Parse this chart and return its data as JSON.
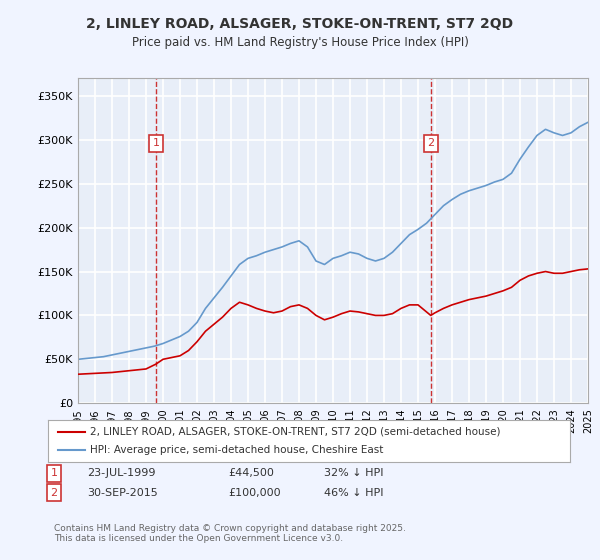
{
  "title": "2, LINLEY ROAD, ALSAGER, STOKE-ON-TRENT, ST7 2QD",
  "subtitle": "Price paid vs. HM Land Registry's House Price Index (HPI)",
  "background_color": "#f0f4ff",
  "plot_bg_color": "#e8eef8",
  "grid_color": "#ffffff",
  "legend_label_red": "2, LINLEY ROAD, ALSAGER, STOKE-ON-TRENT, ST7 2QD (semi-detached house)",
  "legend_label_blue": "HPI: Average price, semi-detached house, Cheshire East",
  "footer": "Contains HM Land Registry data © Crown copyright and database right 2025.\nThis data is licensed under the Open Government Licence v3.0.",
  "annotation1": {
    "label": "1",
    "date": "23-JUL-1999",
    "price": 44500,
    "note": "32% ↓ HPI"
  },
  "annotation2": {
    "label": "2",
    "date": "30-SEP-2015",
    "price": 100000,
    "note": "46% ↓ HPI"
  },
  "red_line_color": "#cc0000",
  "blue_line_color": "#6699cc",
  "annotation_box_color": "#cc3333",
  "dashed_line_color": "#cc3333",
  "ylim": [
    0,
    370000
  ],
  "yticks": [
    0,
    50000,
    100000,
    150000,
    200000,
    250000,
    300000,
    350000
  ],
  "ytick_labels": [
    "£0",
    "£50K",
    "£100K",
    "£150K",
    "£200K",
    "£250K",
    "£300K",
    "£350K"
  ],
  "x_start_year": 1995,
  "x_end_year": 2025,
  "red_data": {
    "years": [
      1995.0,
      1995.5,
      1996.0,
      1996.5,
      1997.0,
      1997.5,
      1998.0,
      1998.5,
      1999.0,
      1999.58,
      2000.0,
      2000.5,
      2001.0,
      2001.5,
      2002.0,
      2002.5,
      2003.0,
      2003.5,
      2004.0,
      2004.5,
      2005.0,
      2005.5,
      2006.0,
      2006.5,
      2007.0,
      2007.5,
      2008.0,
      2008.5,
      2009.0,
      2009.5,
      2010.0,
      2010.5,
      2011.0,
      2011.5,
      2012.0,
      2012.5,
      2013.0,
      2013.5,
      2014.0,
      2014.5,
      2015.0,
      2015.75,
      2016.0,
      2016.5,
      2017.0,
      2017.5,
      2018.0,
      2018.5,
      2019.0,
      2019.5,
      2020.0,
      2020.5,
      2021.0,
      2021.5,
      2022.0,
      2022.5,
      2023.0,
      2023.5,
      2024.0,
      2024.5,
      2025.0
    ],
    "values": [
      33000,
      33500,
      34000,
      34500,
      35000,
      36000,
      37000,
      38000,
      39000,
      44500,
      50000,
      52000,
      54000,
      60000,
      70000,
      82000,
      90000,
      98000,
      108000,
      115000,
      112000,
      108000,
      105000,
      103000,
      105000,
      110000,
      112000,
      108000,
      100000,
      95000,
      98000,
      102000,
      105000,
      104000,
      102000,
      100000,
      100000,
      102000,
      108000,
      112000,
      112000,
      100000,
      103000,
      108000,
      112000,
      115000,
      118000,
      120000,
      122000,
      125000,
      128000,
      132000,
      140000,
      145000,
      148000,
      150000,
      148000,
      148000,
      150000,
      152000,
      153000
    ]
  },
  "blue_data": {
    "years": [
      1995.0,
      1995.5,
      1996.0,
      1996.5,
      1997.0,
      1997.5,
      1998.0,
      1998.5,
      1999.0,
      1999.5,
      2000.0,
      2000.5,
      2001.0,
      2001.5,
      2002.0,
      2002.5,
      2003.0,
      2003.5,
      2004.0,
      2004.5,
      2005.0,
      2005.5,
      2006.0,
      2006.5,
      2007.0,
      2007.5,
      2008.0,
      2008.5,
      2009.0,
      2009.5,
      2010.0,
      2010.5,
      2011.0,
      2011.5,
      2012.0,
      2012.5,
      2013.0,
      2013.5,
      2014.0,
      2014.5,
      2015.0,
      2015.5,
      2016.0,
      2016.5,
      2017.0,
      2017.5,
      2018.0,
      2018.5,
      2019.0,
      2019.5,
      2020.0,
      2020.5,
      2021.0,
      2021.5,
      2022.0,
      2022.5,
      2023.0,
      2023.5,
      2024.0,
      2024.5,
      2025.0
    ],
    "values": [
      50000,
      51000,
      52000,
      53000,
      55000,
      57000,
      59000,
      61000,
      63000,
      65000,
      68000,
      72000,
      76000,
      82000,
      92000,
      108000,
      120000,
      132000,
      145000,
      158000,
      165000,
      168000,
      172000,
      175000,
      178000,
      182000,
      185000,
      178000,
      162000,
      158000,
      165000,
      168000,
      172000,
      170000,
      165000,
      162000,
      165000,
      172000,
      182000,
      192000,
      198000,
      205000,
      215000,
      225000,
      232000,
      238000,
      242000,
      245000,
      248000,
      252000,
      255000,
      262000,
      278000,
      292000,
      305000,
      312000,
      308000,
      305000,
      308000,
      315000,
      320000
    ]
  }
}
